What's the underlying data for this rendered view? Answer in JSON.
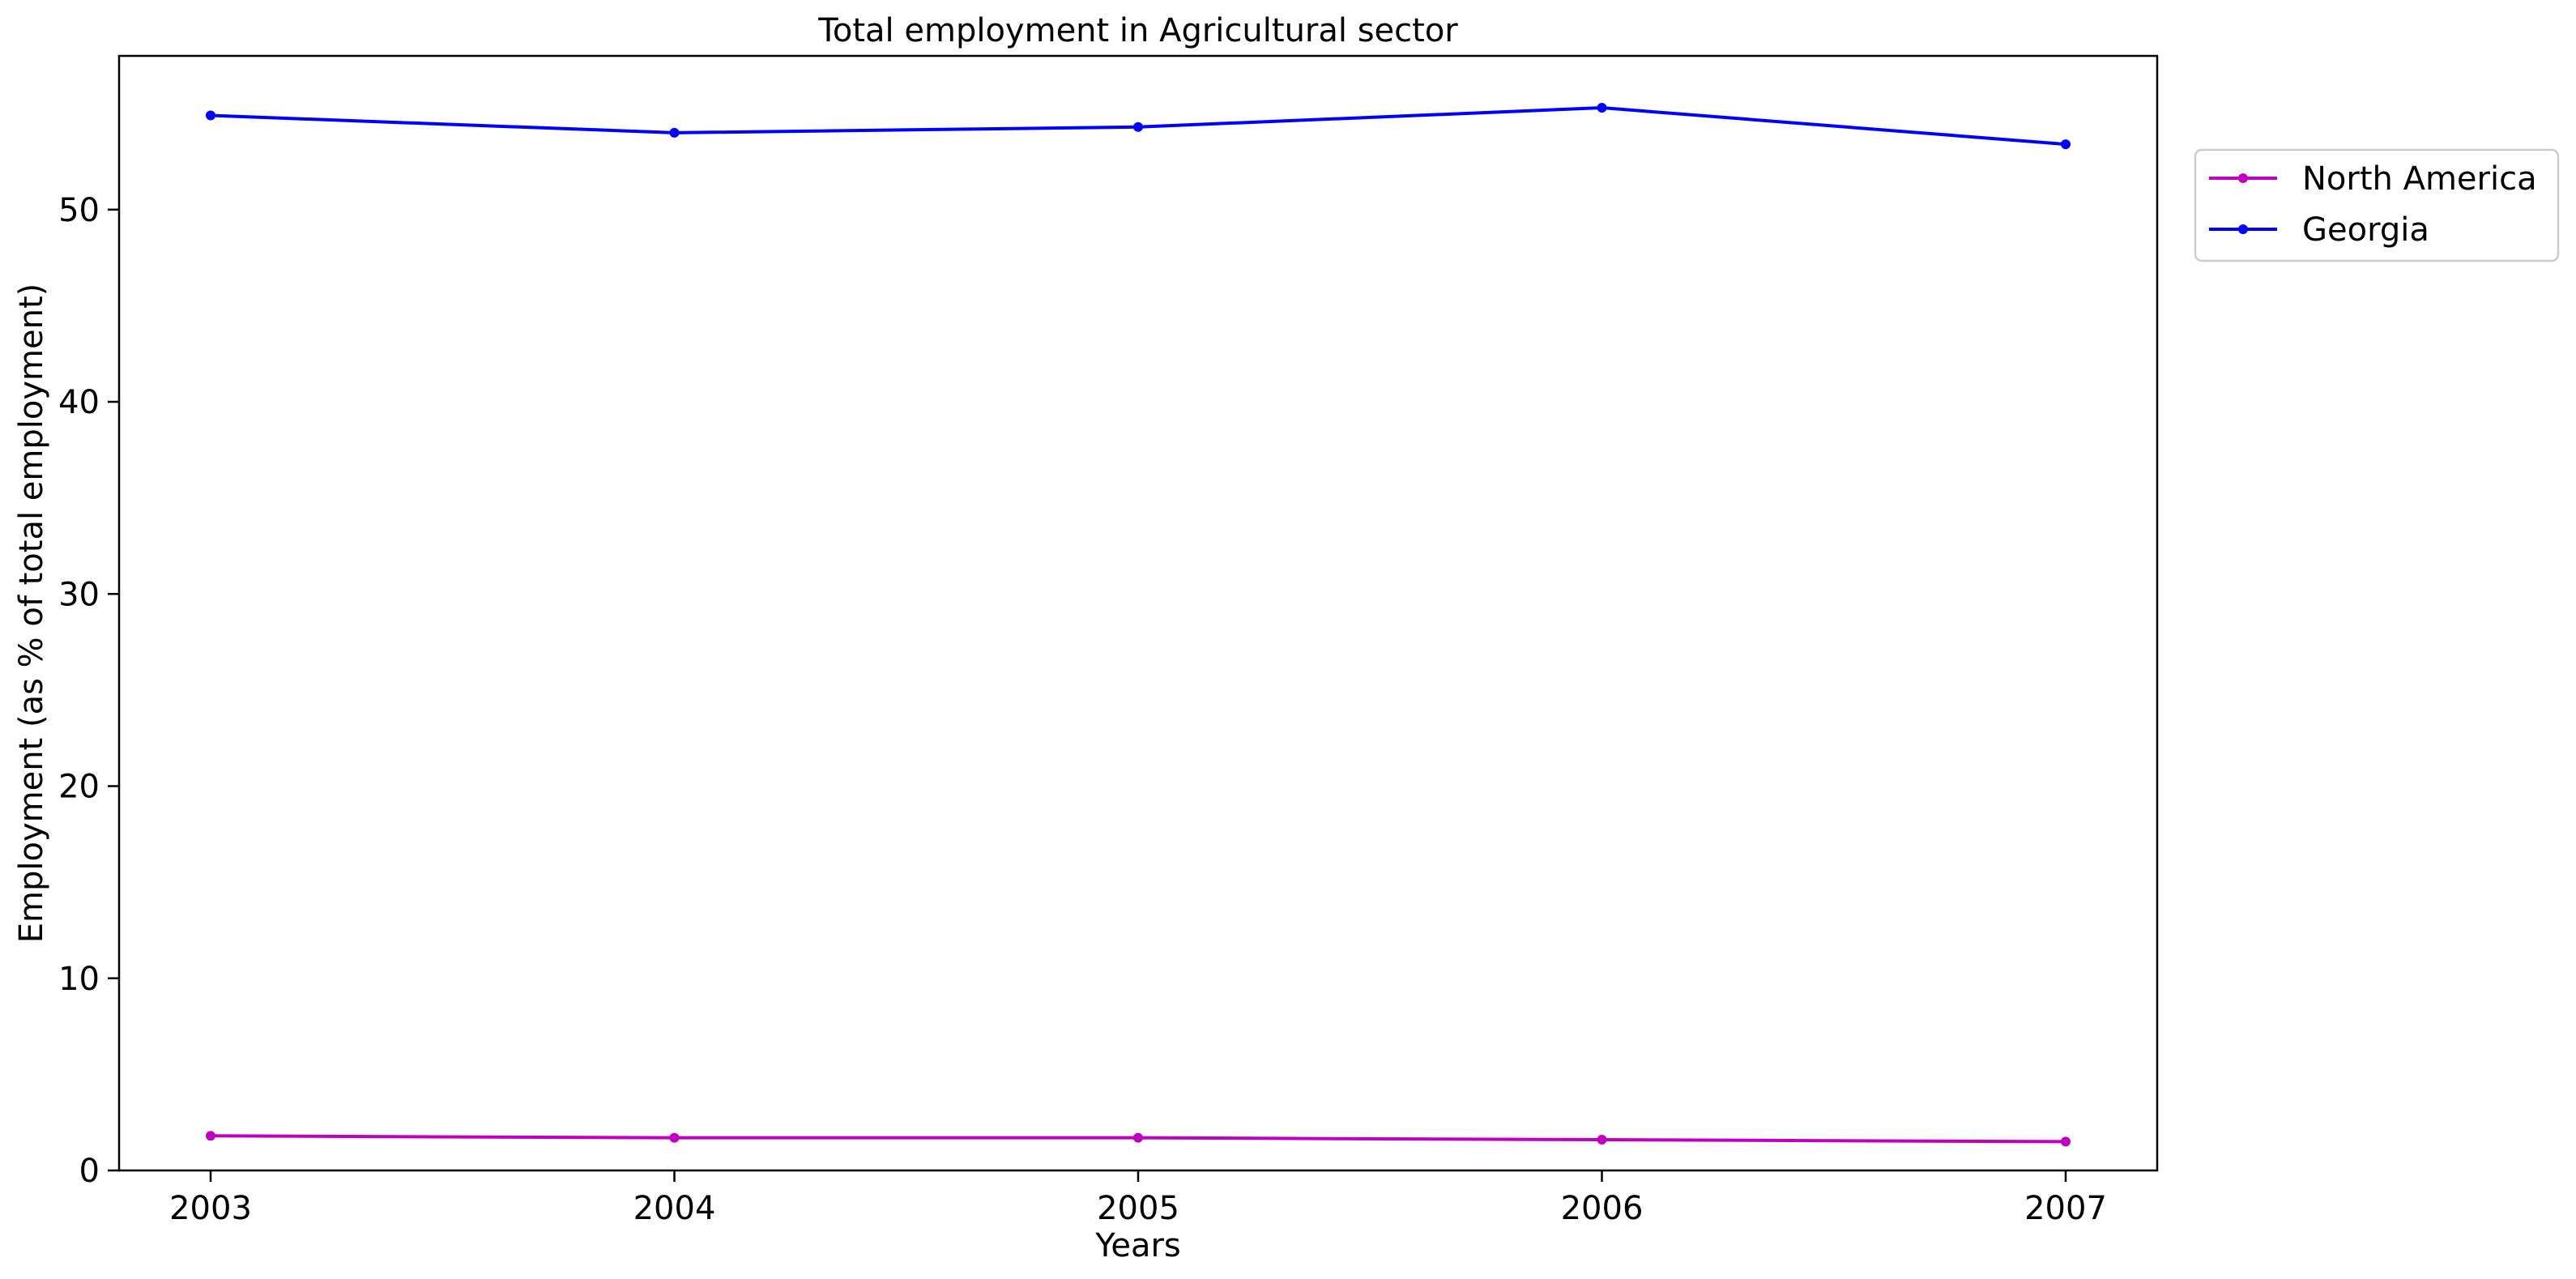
{
  "chart_data": {
    "type": "line",
    "title": "Total employment in Agricultural sector",
    "xlabel": "Years",
    "ylabel": "Employment (as % of total employment)",
    "x": [
      "2003",
      "2004",
      "2005",
      "2006",
      "2007"
    ],
    "ylim": [
      0,
      58
    ],
    "yticks": [
      0,
      10,
      20,
      30,
      40,
      50
    ],
    "grid": false,
    "legend_position": "outside-right-top",
    "series": [
      {
        "name": "North America",
        "color": "#bf00bf",
        "marker": "dot",
        "values": [
          1.8,
          1.7,
          1.7,
          1.6,
          1.5
        ]
      },
      {
        "name": "Georgia",
        "color": "#0000ff",
        "marker": "dot",
        "values": [
          54.9,
          54.0,
          54.3,
          55.3,
          53.4
        ]
      }
    ]
  }
}
